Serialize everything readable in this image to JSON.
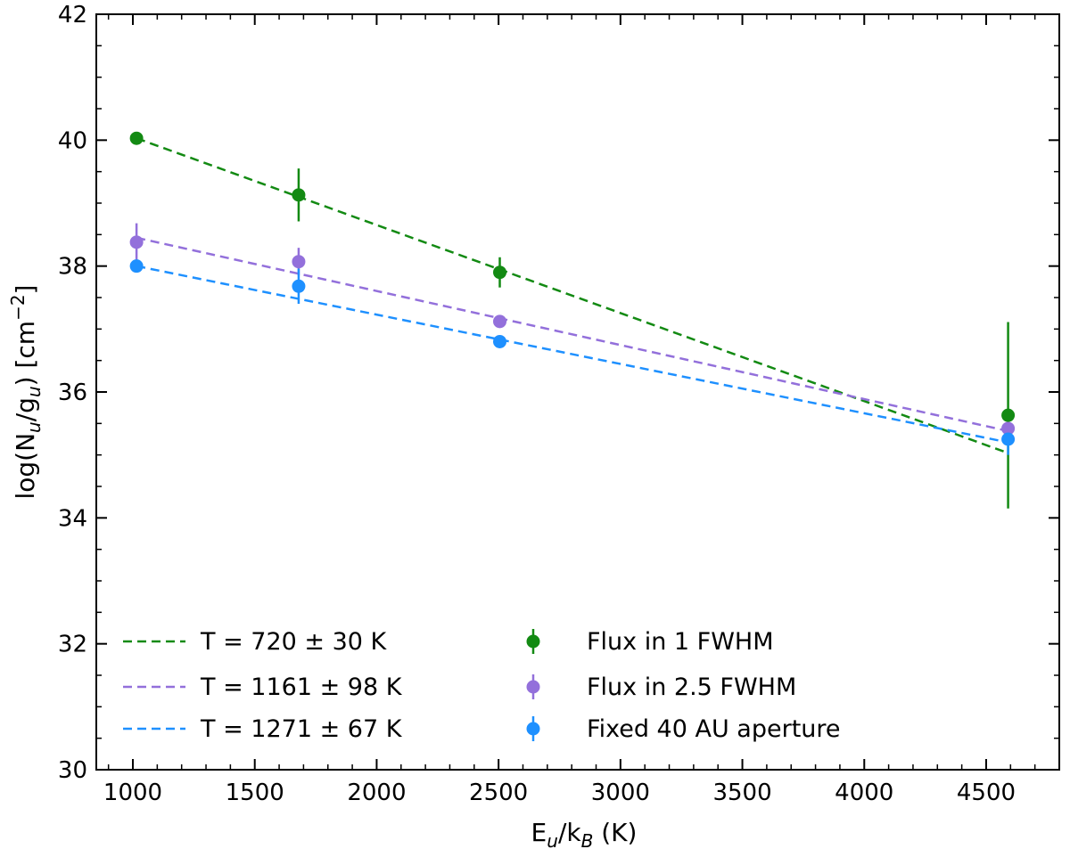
{
  "chart_data": {
    "type": "scatter",
    "title": "",
    "xlabel": {
      "main": "E",
      "sub1": "u",
      "mid": "/k",
      "sub2": "B",
      "tail": " (K)"
    },
    "ylabel": {
      "pre": "log(N",
      "sub1": "u",
      "mid": "/g",
      "sub2": "u",
      "post": ")  [cm",
      "sup": "−2",
      "end": "]"
    },
    "xlim": [
      850,
      4800
    ],
    "ylim": [
      30,
      42
    ],
    "x_ticks": [
      1000,
      1500,
      2000,
      2500,
      3000,
      3500,
      4000,
      4500
    ],
    "x_tick_labels": [
      "1000",
      "1500",
      "2000",
      "2500",
      "3000",
      "3500",
      "4000",
      "4500"
    ],
    "y_ticks": [
      30,
      32,
      34,
      36,
      38,
      40,
      42
    ],
    "y_tick_labels": [
      "30",
      "32",
      "34",
      "36",
      "38",
      "40",
      "42"
    ],
    "legend_position": "lower-left",
    "series": [
      {
        "name": "Flux in 1 FWHM",
        "color": "#138a13",
        "x": [
          1015,
          1680,
          2505,
          4590
        ],
        "y": [
          40.03,
          39.13,
          37.9,
          35.63
        ],
        "yerr": [
          0.0,
          0.42,
          0.24,
          1.48
        ]
      },
      {
        "name": "Flux in 2.5 FWHM",
        "color": "#9370db",
        "x": [
          1015,
          1680,
          2505,
          4590
        ],
        "y": [
          38.38,
          38.07,
          37.12,
          35.42
        ],
        "yerr": [
          0.3,
          0.22,
          0.0,
          0.0
        ]
      },
      {
        "name": "Fixed 40 AU aperture",
        "color": "#1e90ff",
        "x": [
          1015,
          1680,
          2505,
          4590
        ],
        "y": [
          38.0,
          37.68,
          36.8,
          35.25
        ],
        "yerr": [
          0.0,
          0.28,
          0.0,
          0.25
        ]
      }
    ],
    "fits": [
      {
        "name": "T = 720 ± 30 K",
        "color": "#138a13",
        "x": [
          1015,
          4590
        ],
        "y": [
          40.03,
          35.03
        ]
      },
      {
        "name": "T = 1161 ± 98 K",
        "color": "#9370db",
        "x": [
          1015,
          4590
        ],
        "y": [
          38.45,
          35.38
        ]
      },
      {
        "name": "T = 1271 ± 67 K",
        "color": "#1e90ff",
        "x": [
          1015,
          4590
        ],
        "y": [
          38.0,
          35.2
        ]
      }
    ]
  }
}
